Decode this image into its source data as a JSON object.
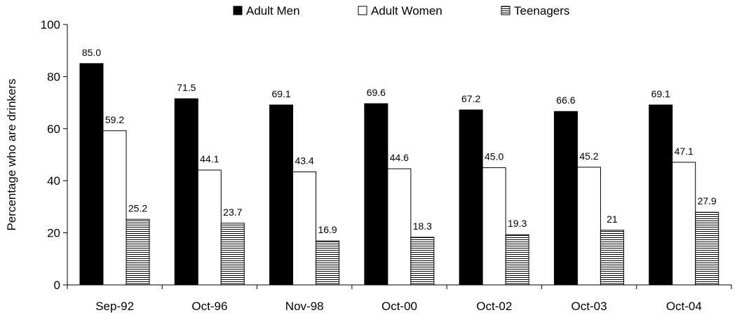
{
  "chart_data": {
    "type": "bar",
    "title": "",
    "xlabel": "",
    "ylabel": "Percentage who are drinkers",
    "ylim": [
      0,
      100
    ],
    "yticks": [
      0,
      20,
      40,
      60,
      80,
      100
    ],
    "grid": false,
    "legend_position": "top",
    "categories": [
      "Sep-92",
      "Oct-96",
      "Nov-98",
      "Oct-00",
      "Oct-02",
      "Oct-03",
      "Oct-04"
    ],
    "series": [
      {
        "name": "Adult Men",
        "fill": "solid-black",
        "values": [
          85.0,
          71.5,
          69.1,
          69.6,
          67.2,
          66.6,
          69.1
        ],
        "labels": [
          "85.0",
          "71.5",
          "69.1",
          "69.6",
          "67.2",
          "66.6",
          "69.1"
        ]
      },
      {
        "name": "Adult Women",
        "fill": "white",
        "values": [
          59.2,
          44.1,
          43.4,
          44.6,
          45.0,
          45.2,
          47.1
        ],
        "labels": [
          "59.2",
          "44.1",
          "43.4",
          "44.6",
          "45.0",
          "45.2",
          "47.1"
        ]
      },
      {
        "name": "Teenagers",
        "fill": "horizontal-stripes",
        "values": [
          25.2,
          23.7,
          16.9,
          18.3,
          19.3,
          21,
          27.9
        ],
        "labels": [
          "25.2",
          "23.7",
          "16.9",
          "18.3",
          "19.3",
          "21",
          "27.9"
        ]
      }
    ]
  }
}
